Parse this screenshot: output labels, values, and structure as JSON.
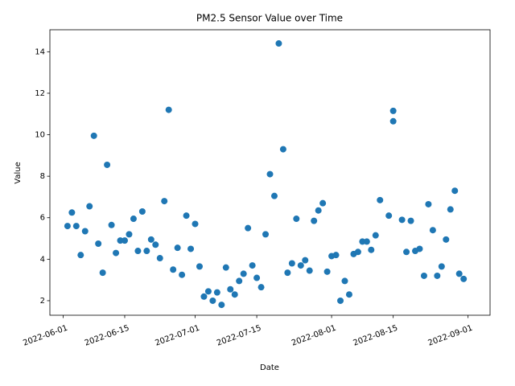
{
  "chart_data": {
    "type": "scatter",
    "title": "PM2.5 Sensor Value over Time",
    "x_label": "Date",
    "y_label": "Value",
    "color": "#1f77b4",
    "x": [
      "2022-06-02",
      "2022-06-03",
      "2022-06-04",
      "2022-06-05",
      "2022-06-06",
      "2022-06-07",
      "2022-06-08",
      "2022-06-09",
      "2022-06-10",
      "2022-06-11",
      "2022-06-12",
      "2022-06-13",
      "2022-06-14",
      "2022-06-15",
      "2022-06-16",
      "2022-06-17",
      "2022-06-18",
      "2022-06-19",
      "2022-06-20",
      "2022-06-21",
      "2022-06-22",
      "2022-06-23",
      "2022-06-24",
      "2022-06-25",
      "2022-06-26",
      "2022-06-27",
      "2022-06-28",
      "2022-06-29",
      "2022-06-30",
      "2022-07-01",
      "2022-07-02",
      "2022-07-03",
      "2022-07-04",
      "2022-07-05",
      "2022-07-06",
      "2022-07-07",
      "2022-07-08",
      "2022-07-09",
      "2022-07-10",
      "2022-07-11",
      "2022-07-12",
      "2022-07-13",
      "2022-07-14",
      "2022-07-15",
      "2022-07-16",
      "2022-07-17",
      "2022-07-18",
      "2022-07-19",
      "2022-07-20",
      "2022-07-21",
      "2022-07-22",
      "2022-07-23",
      "2022-07-24",
      "2022-07-25",
      "2022-07-26",
      "2022-07-27",
      "2022-07-28",
      "2022-07-29",
      "2022-07-30",
      "2022-07-31",
      "2022-08-01",
      "2022-08-02",
      "2022-08-03",
      "2022-08-04",
      "2022-08-05",
      "2022-08-06",
      "2022-08-07",
      "2022-08-08",
      "2022-08-09",
      "2022-08-10",
      "2022-08-11",
      "2022-08-12",
      "2022-08-14",
      "2022-08-15",
      "2022-08-15",
      "2022-08-17",
      "2022-08-18",
      "2022-08-19",
      "2022-08-20",
      "2022-08-21",
      "2022-08-22",
      "2022-08-23",
      "2022-08-24",
      "2022-08-25",
      "2022-08-26",
      "2022-08-27",
      "2022-08-28",
      "2022-08-29",
      "2022-08-30",
      "2022-08-31"
    ],
    "y": [
      5.6,
      6.25,
      5.6,
      4.2,
      5.35,
      6.55,
      9.95,
      4.75,
      3.35,
      8.55,
      5.65,
      4.3,
      4.9,
      4.9,
      5.2,
      5.95,
      4.4,
      6.3,
      4.4,
      4.95,
      4.7,
      4.05,
      6.8,
      11.2,
      3.5,
      4.55,
      3.25,
      6.1,
      4.5,
      5.7,
      3.65,
      2.2,
      2.45,
      2.0,
      2.4,
      1.8,
      3.6,
      2.55,
      2.3,
      2.95,
      3.3,
      5.5,
      3.7,
      3.1,
      2.65,
      5.2,
      8.1,
      7.05,
      14.4,
      9.3,
      3.35,
      3.8,
      5.95,
      3.7,
      3.95,
      3.45,
      5.85,
      6.35,
      6.7,
      3.4,
      4.15,
      4.2,
      2.0,
      2.95,
      2.3,
      4.25,
      4.35,
      4.85,
      4.85,
      4.45,
      5.15,
      6.85,
      6.1,
      11.15,
      10.65,
      5.9,
      4.35,
      5.85,
      4.4,
      4.5,
      3.2,
      6.65,
      5.4,
      3.2,
      3.65,
      4.95,
      6.4,
      7.3,
      3.3,
      3.05
    ],
    "xlim": [
      "2022-05-29",
      "2022-09-06"
    ],
    "xticks": [
      "2022-06-01",
      "2022-06-15",
      "2022-07-01",
      "2022-07-15",
      "2022-08-01",
      "2022-08-15",
      "2022-09-01"
    ],
    "ylim": [
      1.3,
      15.06
    ],
    "yticks": [
      2,
      4,
      6,
      8,
      10,
      12,
      14
    ]
  }
}
